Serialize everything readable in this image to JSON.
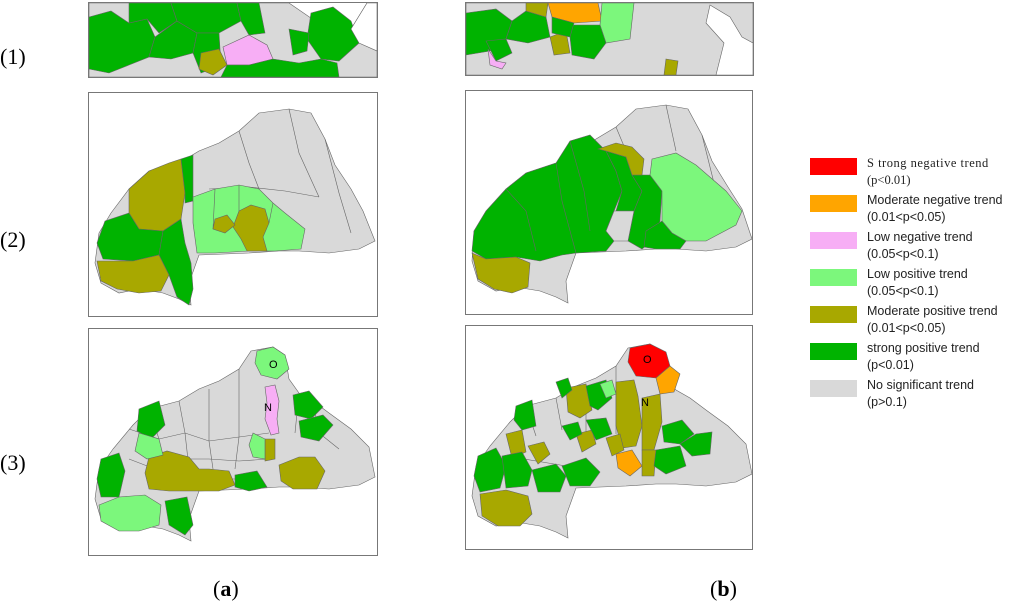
{
  "rows": [
    "(1)",
    "(2)",
    "(3)"
  ],
  "columns": [
    "a",
    "b"
  ],
  "map_labels": {
    "north": "N",
    "oudalan": "O"
  },
  "colors": {
    "strong_negative": "#ff0000",
    "moderate_negative": "#ffa500",
    "low_negative": "#f7aef5",
    "low_positive": "#7cf77c",
    "moderate_positive": "#a8a800",
    "strong_positive": "#00b300",
    "no_significant": "#d9d9d9",
    "border": "#666666"
  },
  "legend": [
    {
      "label": "S trong negative trend",
      "range": "(p<0.01)",
      "color": "#ff0000"
    },
    {
      "label": "Moderate negative trend",
      "range": "(0.01<p<0.05)",
      "color": "#ffa500"
    },
    {
      "label": "Low negative trend",
      "range": "(0.05<p<0.1)",
      "color": "#f7aef5"
    },
    {
      "label": "Low positive trend",
      "range": "(0.05<p<0.1)",
      "color": "#7cf77c"
    },
    {
      "label": "Moderate positive trend",
      "range": "(0.01<p<0.05)",
      "color": "#a8a800"
    },
    {
      "label": "strong positive trend",
      "range": "(p<0.01)",
      "color": "#00b300"
    },
    {
      "label": "No significant trend",
      "range": "(p>0.1)",
      "color": "#d9d9d9"
    }
  ]
}
